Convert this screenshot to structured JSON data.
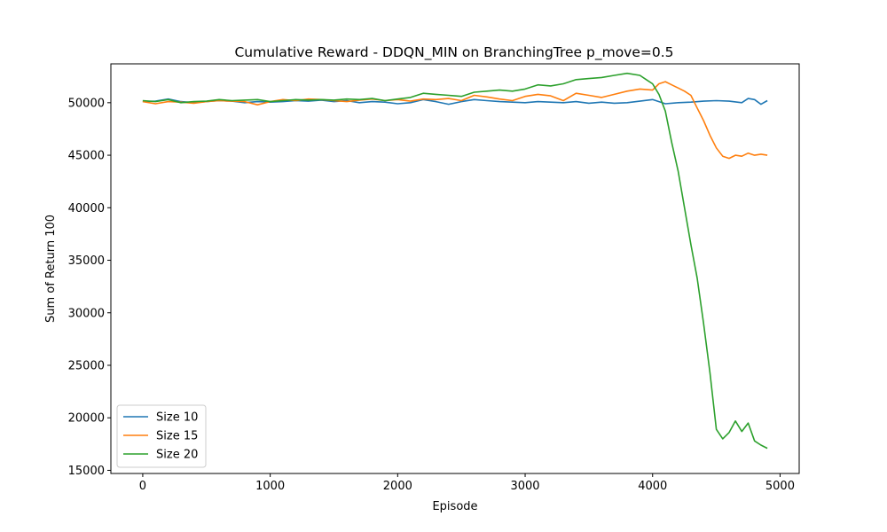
{
  "chart_data": {
    "type": "line",
    "title": "Cumulative Reward - DDQN_MIN on BranchingTree p_move=0.5",
    "xlabel": "Episode",
    "ylabel": "Sum of Return 100",
    "xlim": [
      -250,
      5150
    ],
    "ylim": [
      14700,
      53700
    ],
    "xticks": [
      0,
      1000,
      2000,
      3000,
      4000,
      5000
    ],
    "yticks": [
      15000,
      20000,
      25000,
      30000,
      35000,
      40000,
      45000,
      50000
    ],
    "legend_position": "lower-left",
    "grid": false,
    "series": [
      {
        "name": "Size 10",
        "color": "#1f77b4",
        "x": [
          0,
          100,
          200,
          300,
          400,
          500,
          600,
          700,
          800,
          900,
          1000,
          1100,
          1200,
          1300,
          1400,
          1500,
          1600,
          1700,
          1800,
          1900,
          2000,
          2100,
          2200,
          2300,
          2400,
          2500,
          2600,
          2700,
          2800,
          2900,
          3000,
          3100,
          3200,
          3300,
          3400,
          3500,
          3600,
          3700,
          3800,
          3900,
          4000,
          4100,
          4200,
          4300,
          4400,
          4500,
          4600,
          4700,
          4750,
          4800,
          4850,
          4900
        ],
        "y": [
          50100,
          50150,
          50350,
          50100,
          50000,
          50100,
          50200,
          50150,
          50000,
          50100,
          50050,
          50100,
          50200,
          50150,
          50250,
          50100,
          50200,
          50000,
          50100,
          50050,
          49900,
          50000,
          50300,
          50100,
          49850,
          50100,
          50300,
          50200,
          50100,
          50050,
          50000,
          50100,
          50050,
          50000,
          50100,
          49950,
          50050,
          49950,
          50000,
          50150,
          50300,
          49900,
          50000,
          50050,
          50150,
          50200,
          50150,
          50000,
          50400,
          50300,
          49850,
          50200
        ]
      },
      {
        "name": "Size 15",
        "color": "#ff7f0e",
        "x": [
          0,
          100,
          200,
          300,
          400,
          500,
          600,
          700,
          800,
          900,
          1000,
          1100,
          1200,
          1300,
          1400,
          1500,
          1600,
          1700,
          1800,
          1900,
          2000,
          2100,
          2200,
          2300,
          2400,
          2500,
          2600,
          2700,
          2800,
          2900,
          3000,
          3100,
          3200,
          3300,
          3400,
          3500,
          3600,
          3700,
          3800,
          3900,
          4000,
          4050,
          4100,
          4150,
          4200,
          4250,
          4300,
          4350,
          4400,
          4450,
          4500,
          4550,
          4600,
          4650,
          4700,
          4750,
          4800,
          4850,
          4900
        ],
        "y": [
          50100,
          49900,
          50100,
          50050,
          49950,
          50100,
          50200,
          50150,
          50100,
          49800,
          50100,
          50300,
          50200,
          50350,
          50300,
          50200,
          50100,
          50250,
          50350,
          50200,
          50300,
          50150,
          50350,
          50300,
          50400,
          50200,
          50700,
          50550,
          50350,
          50200,
          50600,
          50800,
          50650,
          50200,
          50900,
          50700,
          50500,
          50800,
          51100,
          51300,
          51200,
          51800,
          52000,
          51700,
          51400,
          51100,
          50700,
          49500,
          48300,
          46900,
          45700,
          44900,
          44700,
          45000,
          44900,
          45200,
          45000,
          45100,
          45000
        ]
      },
      {
        "name": "Size 20",
        "color": "#2ca02c",
        "x": [
          0,
          100,
          200,
          300,
          400,
          500,
          600,
          700,
          800,
          900,
          1000,
          1100,
          1200,
          1300,
          1400,
          1500,
          1600,
          1700,
          1800,
          1900,
          2000,
          2100,
          2200,
          2300,
          2400,
          2500,
          2600,
          2700,
          2800,
          2900,
          3000,
          3100,
          3200,
          3300,
          3400,
          3500,
          3600,
          3700,
          3800,
          3900,
          3950,
          4000,
          4050,
          4100,
          4150,
          4200,
          4250,
          4300,
          4350,
          4400,
          4450,
          4500,
          4550,
          4600,
          4650,
          4700,
          4750,
          4800,
          4850,
          4900
        ],
        "y": [
          50200,
          50100,
          50300,
          50000,
          50100,
          50150,
          50300,
          50200,
          50250,
          50300,
          50100,
          50200,
          50300,
          50250,
          50300,
          50250,
          50350,
          50300,
          50400,
          50200,
          50350,
          50500,
          50900,
          50800,
          50700,
          50600,
          51000,
          51100,
          51200,
          51100,
          51300,
          51700,
          51600,
          51800,
          52200,
          52300,
          52400,
          52600,
          52800,
          52600,
          52200,
          51800,
          50800,
          49200,
          46200,
          43500,
          40000,
          36500,
          33300,
          29000,
          24300,
          18900,
          18000,
          18600,
          19700,
          18700,
          19500,
          17800,
          17400,
          17100
        ]
      }
    ]
  }
}
